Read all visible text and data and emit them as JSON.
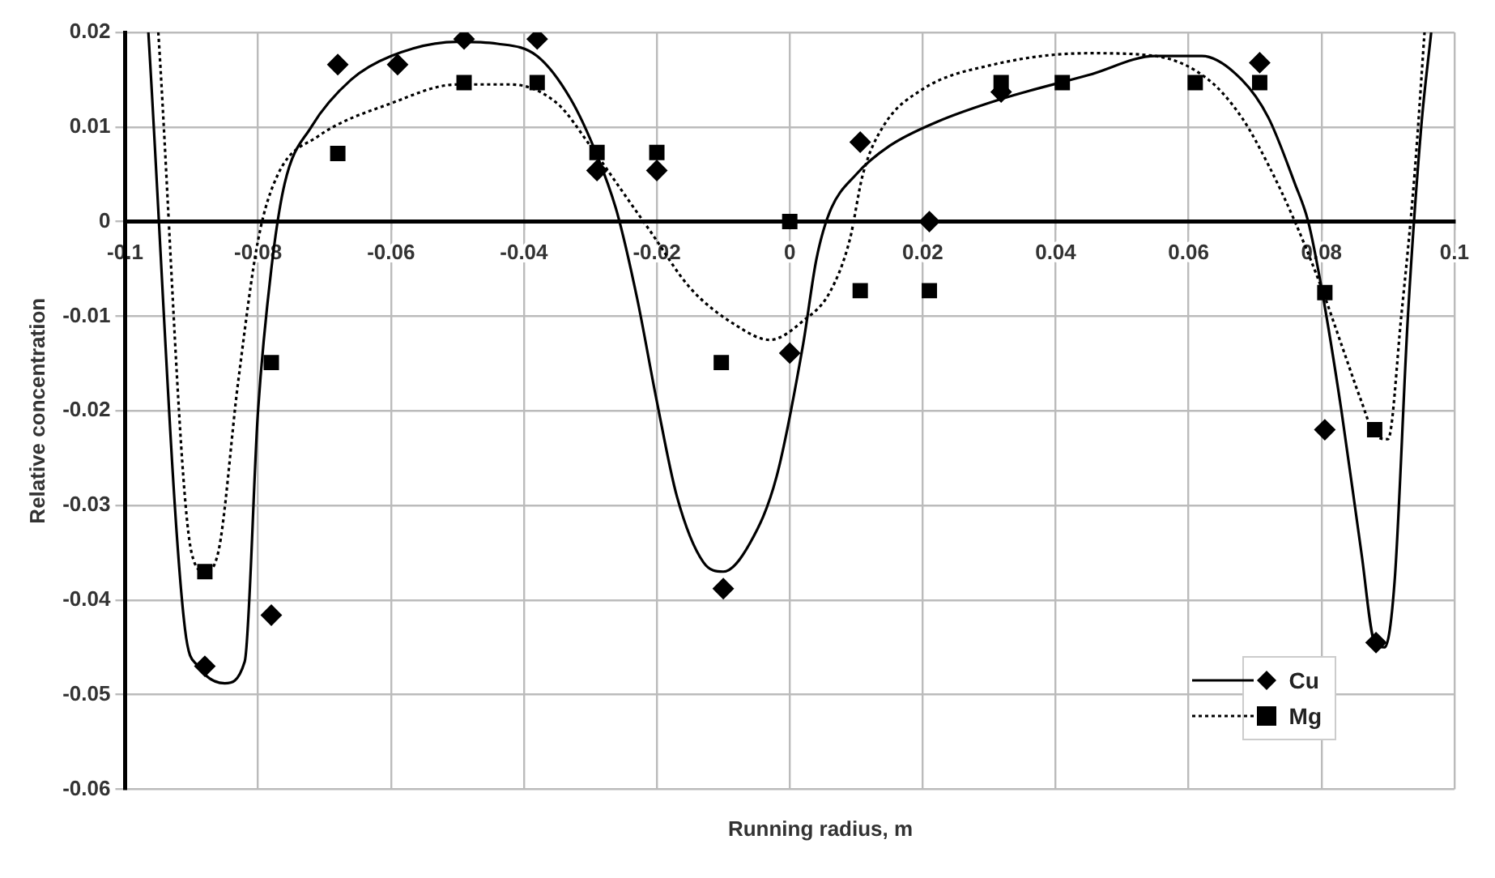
{
  "chart_data": {
    "type": "scatter",
    "xlabel": "Running radius, m",
    "ylabel": "Relative concentration",
    "xlim": [
      -0.1,
      0.1
    ],
    "xticks": [
      -0.1,
      -0.08,
      -0.06,
      -0.04,
      -0.02,
      0,
      0.02,
      0.04,
      0.06,
      0.08,
      0.1
    ],
    "ylim": [
      -0.06,
      0.02
    ],
    "yticks": [
      -0.06,
      -0.05,
      -0.04,
      -0.03,
      -0.02,
      -0.01,
      0,
      0.01,
      0.02
    ],
    "grid": true,
    "legend": "bottom right",
    "series": [
      {
        "name": "Cu",
        "marker": "diamond",
        "line_style": "solid",
        "color": "#000000",
        "x": [
          -0.088,
          -0.078,
          -0.068,
          -0.059,
          -0.049,
          -0.038,
          -0.029,
          -0.02,
          -0.01,
          0,
          0.0106,
          0.021,
          0.0318,
          0.0707,
          0.0805,
          0.0882
        ],
        "values": [
          -0.047,
          -0.0416,
          0.0166,
          0.0166,
          0.0193,
          0.0193,
          0.0054,
          0.0054,
          -0.0388,
          -0.0139,
          0.0084,
          0,
          0.0137,
          0.0168,
          -0.022,
          -0.0445
        ]
      },
      {
        "name": "Mg",
        "marker": "square",
        "line_style": "dotted",
        "color": "#000000",
        "x": [
          -0.088,
          -0.078,
          -0.068,
          -0.049,
          -0.038,
          -0.029,
          -0.02,
          -0.0103,
          0,
          0.0106,
          0.021,
          0.0318,
          0.041,
          0.061,
          0.0707,
          0.0805,
          0.088
        ],
        "values": [
          -0.037,
          -0.0149,
          0.0072,
          0.0147,
          0.0147,
          0.0073,
          0.0073,
          -0.0149,
          0,
          -0.0073,
          -0.0073,
          0.0147,
          0.0147,
          0.0147,
          0.0147,
          -0.0075,
          -0.022
        ]
      },
      {
        "type": "line",
        "marker": "none",
        "line_style": "solid",
        "color": "#000000",
        "x": [
          -0.0965,
          -0.091,
          -0.089,
          -0.085,
          -0.082,
          -0.08,
          -0.078,
          -0.076,
          -0.072,
          -0.066,
          -0.06,
          -0.05,
          -0.044,
          -0.038,
          -0.033,
          -0.029,
          -0.026,
          -0.023,
          -0.02,
          -0.017,
          -0.013,
          -0.01,
          -0.006,
          -0.002,
          0.002,
          0.004,
          0.006,
          0.01,
          0.015,
          0.022,
          0.032,
          0.045,
          0.055,
          0.062,
          0.068,
          0.072,
          0.076,
          0.078,
          0.08,
          0.083,
          0.086,
          0.088,
          0.0895,
          0.091,
          0.093,
          0.095,
          0.0965
        ],
        "values": [
          0.02,
          -0.043,
          -0.047,
          -0.0488,
          -0.0465,
          -0.02,
          -0.005,
          0.004,
          0.01,
          0.015,
          0.0175,
          0.019,
          0.0188,
          0.0175,
          0.013,
          0.007,
          0.001,
          -0.008,
          -0.019,
          -0.029,
          -0.036,
          -0.037,
          -0.034,
          -0.027,
          -0.013,
          -0.004,
          0.001,
          0.005,
          0.008,
          0.0105,
          0.013,
          0.0155,
          0.0175,
          0.0175,
          0.015,
          0.011,
          0.004,
          0,
          -0.007,
          -0.02,
          -0.035,
          -0.0445,
          -0.045,
          -0.038,
          -0.01,
          0.01,
          0.02
        ]
      },
      {
        "type": "line",
        "marker": "none",
        "line_style": "dotted",
        "color": "#000000",
        "x": [
          -0.095,
          -0.09,
          -0.088,
          -0.086,
          -0.083,
          -0.08,
          -0.077,
          -0.071,
          -0.06,
          -0.05,
          -0.042,
          -0.035,
          -0.03,
          -0.025,
          -0.021,
          -0.015,
          -0.008,
          -0.003,
          0.002,
          0.006,
          0.009,
          0.011,
          0.014,
          0.02,
          0.03,
          0.045,
          0.055,
          0.063,
          0.068,
          0.072,
          0.076,
          0.08,
          0.083,
          0.086,
          0.088,
          0.09,
          0.092,
          0.094,
          0.0955
        ],
        "values": [
          0.02,
          -0.035,
          -0.037,
          -0.035,
          -0.017,
          -0.002,
          0.005,
          0.009,
          0.0125,
          0.0145,
          0.0145,
          0.0125,
          0.008,
          0.003,
          -0.001,
          -0.007,
          -0.011,
          -0.0125,
          -0.0105,
          -0.0075,
          -0.002,
          0.005,
          0.01,
          0.014,
          0.0165,
          0.0178,
          0.0175,
          0.015,
          0.011,
          0.006,
          0,
          -0.007,
          -0.013,
          -0.019,
          -0.0225,
          -0.023,
          -0.01,
          0.005,
          0.02
        ]
      }
    ]
  }
}
